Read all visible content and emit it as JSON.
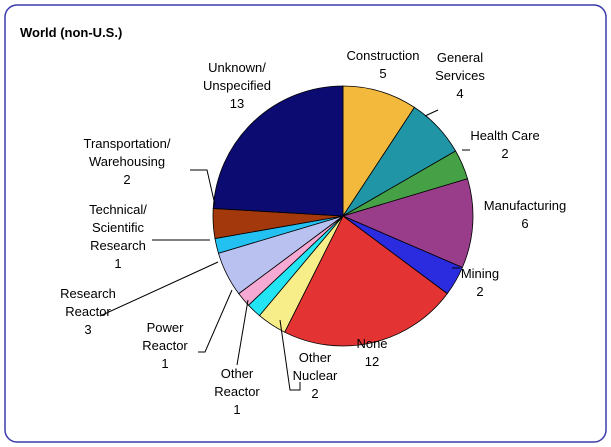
{
  "chart_data": {
    "type": "pie",
    "title": "World (non-U.S.)",
    "categories": [
      "Construction",
      "General\nServices",
      "Health Care",
      "Manufacturing",
      "Mining",
      "None",
      "Other\nNuclear",
      "Other\nReactor",
      "Power\nReactor",
      "Research\nReactor",
      "Technical/\nScientific\nResearch",
      "Transportation/\nWarehousing",
      "Unknown/\nUnspecified"
    ],
    "values": [
      5,
      4,
      2,
      6,
      2,
      12,
      2,
      1,
      1,
      3,
      1,
      2,
      13
    ],
    "colors": [
      "#f3b93d",
      "#1f95a6",
      "#46a046",
      "#993d8a",
      "#2b2be0",
      "#e43333",
      "#f7ee8a",
      "#22e4f2",
      "#f6a9d3",
      "#b9c1f1",
      "#22c1f1",
      "#a2380c",
      "#0b0b72"
    ]
  }
}
